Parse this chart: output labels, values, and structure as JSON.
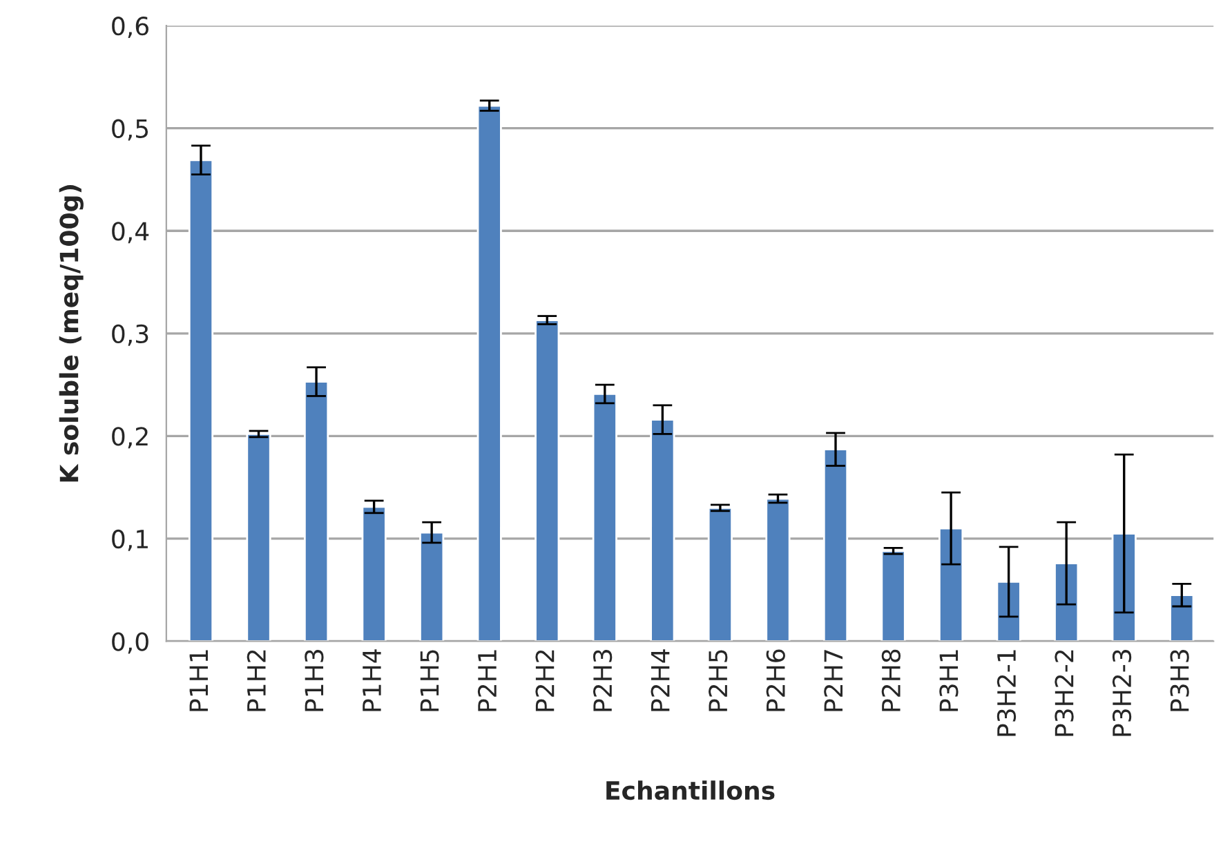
{
  "chart_data": {
    "type": "bar",
    "xlabel": "Echantillons",
    "ylabel": "K soluble (meq/100g)",
    "categories": [
      "P1H1",
      "P1H2",
      "P1H3",
      "P1H4",
      "P1H5",
      "P2H1",
      "P2H2",
      "P2H3",
      "P2H4",
      "P2H5",
      "P2H6",
      "P2H7",
      "P2H8",
      "P3H1",
      "P3H2-1",
      "P3H2-2",
      "P3H2-3",
      "P3H3"
    ],
    "values": [
      0.469,
      0.202,
      0.253,
      0.131,
      0.106,
      0.522,
      0.313,
      0.241,
      0.216,
      0.13,
      0.139,
      0.187,
      0.088,
      0.11,
      0.058,
      0.076,
      0.105,
      0.045
    ],
    "errors": [
      0.014,
      0.003,
      0.014,
      0.006,
      0.01,
      0.005,
      0.004,
      0.009,
      0.014,
      0.003,
      0.004,
      0.016,
      0.003,
      0.035,
      0.034,
      0.04,
      0.077,
      0.011
    ],
    "color": "#4f81bd",
    "ylim": [
      0,
      0.6
    ],
    "yticks": [
      {
        "value": 0,
        "label": "0,0"
      },
      {
        "value": 0.1,
        "label": "0,1"
      },
      {
        "value": 0.2,
        "label": "0,2"
      },
      {
        "value": 0.3,
        "label": "0,3"
      },
      {
        "value": 0.4,
        "label": "0,4"
      },
      {
        "value": 0.5,
        "label": "0,5"
      },
      {
        "value": 0.6,
        "label": "0,6"
      }
    ],
    "grid": "y",
    "legend": false
  }
}
